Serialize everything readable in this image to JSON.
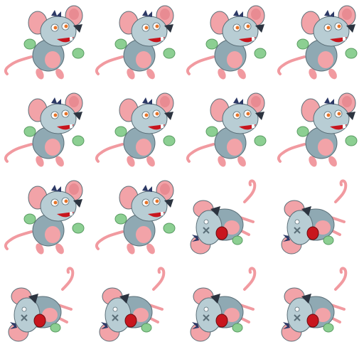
{
  "spritesheet": {
    "columns": 4,
    "rows": 4,
    "colors": {
      "fur": "#b8cdd4",
      "fur_shade": "#8fa9b3",
      "ear_pink": "#f2a3a8",
      "ear_inner": "#e88b92",
      "hands_green": "#8ccf92",
      "tail_pink": "#f19aa0",
      "nose_dark": "#2c3440",
      "mouth_red": "#c8161e",
      "eye_orange": "#e5742a",
      "hair_navy": "#2d3a66",
      "outline": "#5b6f78"
    },
    "frames": [
      {
        "pose": "standing",
        "facing": "right"
      },
      {
        "pose": "standing",
        "facing": "right"
      },
      {
        "pose": "standing",
        "facing": "right"
      },
      {
        "pose": "standing",
        "facing": "right"
      },
      {
        "pose": "standing",
        "facing": "right"
      },
      {
        "pose": "standing",
        "facing": "right"
      },
      {
        "pose": "standing",
        "facing": "right"
      },
      {
        "pose": "standing",
        "facing": "right"
      },
      {
        "pose": "standing",
        "facing": "right"
      },
      {
        "pose": "standing",
        "facing": "right"
      },
      {
        "pose": "knocked-out",
        "facing": "right"
      },
      {
        "pose": "knocked-out",
        "facing": "right"
      },
      {
        "pose": "knocked-out",
        "facing": "right"
      },
      {
        "pose": "knocked-out",
        "facing": "right"
      },
      {
        "pose": "knocked-out",
        "facing": "right"
      },
      {
        "pose": "knocked-out",
        "facing": "right"
      }
    ]
  }
}
